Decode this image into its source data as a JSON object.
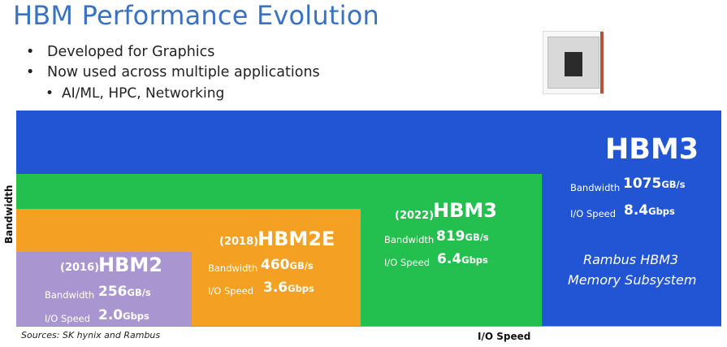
{
  "title": "HBM Performance Evolution",
  "bullets": [
    {
      "text": "Developed for Graphics",
      "level": 1
    },
    {
      "text": "Now used across multiple applications",
      "level": 1
    },
    {
      "text": "AI/ML, HPC, Networking",
      "level": 2
    }
  ],
  "bullet_glyphs": {
    "l1": "•",
    "l2": "•"
  },
  "axes": {
    "y_label": "Bandwidth",
    "x_label": "I/O Speed"
  },
  "source": "Sources: SK hynix and Rambus",
  "image_icon": "hbm-chip-package",
  "colors": {
    "hbm2": "#a996d1",
    "hbm2e": "#f4a022",
    "hbm3_2022": "#23c04f",
    "rambus_hbm3": "#2155d3"
  },
  "generations": [
    {
      "year": "(2016)",
      "name": "HBM2",
      "bw_label": "Bandwidth",
      "bw_value": "256",
      "bw_unit": "GB/s",
      "io_label": "I/O Speed",
      "io_value": "2.0",
      "io_unit": "Gbps"
    },
    {
      "year": "(2018)",
      "name": "HBM2E",
      "bw_label": "Bandwidth",
      "bw_value": "460",
      "bw_unit": "GB/s",
      "io_label": "I/O Speed",
      "io_value": "3.6",
      "io_unit": "Gbps"
    },
    {
      "year": "(2022)",
      "name": "HBM3",
      "bw_label": "Bandwidth",
      "bw_value": "819",
      "bw_unit": "GB/s",
      "io_label": "I/O Speed",
      "io_value": "6.4",
      "io_unit": "Gbps"
    },
    {
      "year": "",
      "name": "HBM3",
      "bw_label": "Bandwidth",
      "bw_value": "1075",
      "bw_unit": "GB/s",
      "io_label": "I/O Speed",
      "io_value": "8.4",
      "io_unit": "Gbps",
      "caption_line1": "Rambus HBM3",
      "caption_line2": "Memory Subsystem"
    }
  ]
}
